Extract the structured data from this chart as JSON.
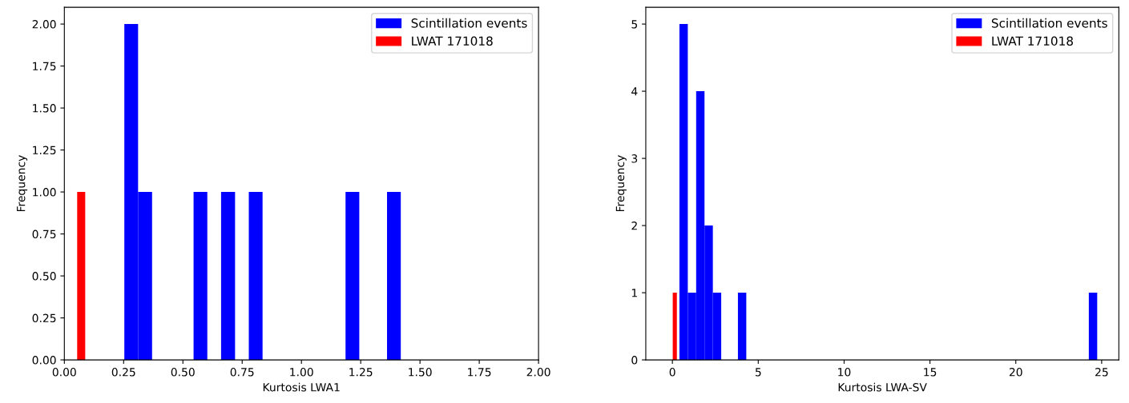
{
  "chart_data": [
    {
      "type": "histogram",
      "xlabel": "Kurtosis LWA1",
      "ylabel": "Frequency",
      "legend": "top right",
      "grid": false,
      "xlim": [
        0,
        2
      ],
      "ylim": [
        0,
        2.1
      ],
      "xticks": [
        {
          "value": 0,
          "label": "0.00"
        },
        {
          "value": 0.25,
          "label": "0.25"
        },
        {
          "value": 0.5,
          "label": "0.50"
        },
        {
          "value": 0.75,
          "label": "0.75"
        },
        {
          "value": 1,
          "label": "1.00"
        },
        {
          "value": 1.25,
          "label": "1.25"
        },
        {
          "value": 1.5,
          "label": "1.50"
        },
        {
          "value": 1.75,
          "label": "1.75"
        },
        {
          "value": 2,
          "label": "2.00"
        }
      ],
      "yticks": [
        {
          "value": 0,
          "label": "0.00"
        },
        {
          "value": 0.25,
          "label": "0.25"
        },
        {
          "value": 0.5,
          "label": "0.50"
        },
        {
          "value": 0.75,
          "label": "0.75"
        },
        {
          "value": 1,
          "label": "1.00"
        },
        {
          "value": 1.25,
          "label": "1.25"
        },
        {
          "value": 1.5,
          "label": "1.50"
        },
        {
          "value": 1.75,
          "label": "1.75"
        },
        {
          "value": 2,
          "label": "2.00"
        }
      ],
      "bins": [
        0.054,
        0.088,
        0.253,
        0.311,
        0.37,
        0.545,
        0.603,
        0.661,
        0.72,
        0.778,
        0.836,
        1.186,
        1.244,
        1.361,
        1.419
      ],
      "series": [
        {
          "name": "Scintillation events",
          "color": "#0000ff",
          "values": [
            0,
            0,
            2,
            1,
            0,
            1,
            0,
            1,
            0,
            1,
            0,
            1,
            0,
            1
          ]
        },
        {
          "name": "LWAT 171018",
          "color": "#ff0000",
          "values": [
            1,
            0,
            0,
            0,
            0,
            0,
            0,
            0,
            0,
            0,
            0,
            0,
            0,
            0
          ]
        }
      ]
    },
    {
      "type": "histogram",
      "xlabel": "Kurtosis LWA-SV",
      "ylabel": "Frequency",
      "legend": "top right",
      "grid": false,
      "xlim": [
        -1.55,
        26.0
      ],
      "ylim": [
        0,
        5.25
      ],
      "xticks": [
        0,
        5,
        10,
        15,
        20,
        25
      ],
      "yticks": [
        0,
        1,
        2,
        3,
        4,
        5
      ],
      "bins": [
        0.02,
        0.26,
        0.41,
        0.897,
        1.383,
        1.87,
        2.356,
        2.843,
        3.816,
        4.303,
        24.252,
        24.74
      ],
      "series": [
        {
          "name": "Scintillation events",
          "color": "#0000ff",
          "values": [
            0,
            0,
            5,
            1,
            4,
            2,
            1,
            0,
            1,
            0,
            1
          ]
        },
        {
          "name": "LWAT 171018",
          "color": "#ff0000",
          "values": [
            1,
            0,
            0,
            0,
            0,
            0,
            0,
            0,
            0,
            0,
            0
          ]
        }
      ]
    }
  ]
}
